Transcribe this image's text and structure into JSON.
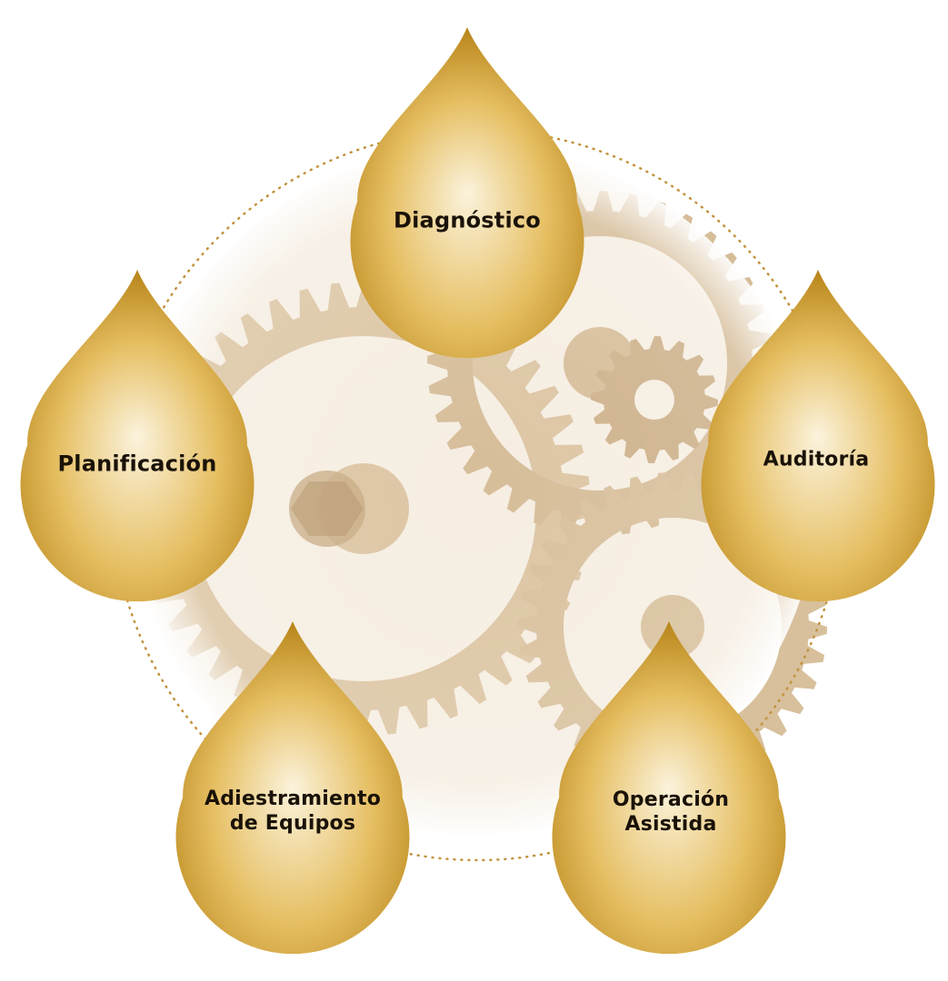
{
  "diagram": {
    "colors": {
      "drop_light": "#fbf3dc",
      "drop_mid": "#e6bf63",
      "drop_dark": "#b78418",
      "ring": "#c2923e",
      "gear": "#d9c3a3",
      "label_text": "#1a1208"
    },
    "background": {
      "icon": "gears-image-icon",
      "ring_style": "dotted"
    },
    "nodes": [
      {
        "id": "diagnostico",
        "label_lines": [
          "Diagnóstico"
        ]
      },
      {
        "id": "planificacion",
        "label_lines": [
          "Planificación"
        ]
      },
      {
        "id": "auditoria",
        "label_lines": [
          "Auditoría"
        ]
      },
      {
        "id": "adiestramiento",
        "label_lines": [
          "Adiestramiento",
          "de Equipos"
        ]
      },
      {
        "id": "operacion",
        "label_lines": [
          "Operación",
          "Asistida"
        ]
      }
    ]
  }
}
